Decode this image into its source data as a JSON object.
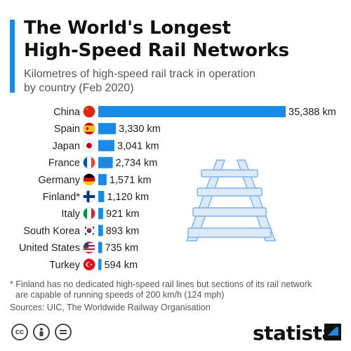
{
  "header": {
    "title_line1": "The World's Longest",
    "title_line2": "High-Speed Rail Networks",
    "subtitle_line1": "Kilometres of high-speed rail track in operation",
    "subtitle_line2": "by country (Feb 2020)"
  },
  "chart_data": {
    "type": "bar",
    "orientation": "horizontal",
    "title": "The World's Longest High-Speed Rail Networks",
    "subtitle": "Kilometres of high-speed rail track in operation by country (Feb 2020)",
    "unit": "km",
    "bar_color": "#1a8ae6",
    "categories": [
      "China",
      "Spain",
      "Japan",
      "France",
      "Germany",
      "Finland*",
      "Italy",
      "South Korea",
      "United States",
      "Turkey"
    ],
    "values": [
      35388,
      3330,
      3041,
      2734,
      1571,
      1120,
      921,
      893,
      735,
      594
    ],
    "value_labels": [
      "35,388 km",
      "3,330 km",
      "3,041 km",
      "2,734 km",
      "1,571 km",
      "1,120 km",
      "921 km",
      "893 km",
      "735 km",
      "594 km"
    ],
    "flag_icons": [
      "china-flag-icon",
      "spain-flag-icon",
      "japan-flag-icon",
      "france-flag-icon",
      "germany-flag-icon",
      "finland-flag-icon",
      "italy-flag-icon",
      "south-korea-flag-icon",
      "united-states-flag-icon",
      "turkey-flag-icon"
    ],
    "grid": false,
    "legend": "none"
  },
  "footer": {
    "footnote_line1": "* Finland has no dedicated high-speed rail lines but sections of its rail network",
    "footnote_line2": "are capable of running speeds of 200 km/h (124 mph)",
    "source": "Sources: UIC, The Worldwide Railway Organisation",
    "brand": "statista"
  }
}
